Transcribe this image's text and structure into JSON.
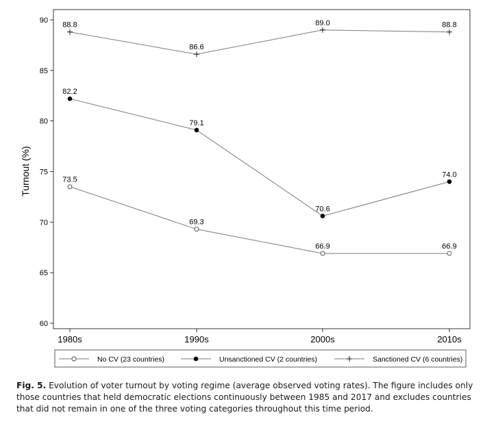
{
  "chart_data": {
    "type": "line",
    "title": "",
    "xlabel": "",
    "ylabel": "Turnout (%)",
    "categories": [
      "1980s",
      "1990s",
      "2000s",
      "2010s"
    ],
    "ylim": [
      60,
      90
    ],
    "yticks": [
      60,
      65,
      70,
      75,
      80,
      85,
      90
    ],
    "grid": false,
    "legend_position": "bottom",
    "series": [
      {
        "name": "No CV (23 countries)",
        "marker": "hollow-circle",
        "values": [
          73.5,
          69.3,
          66.9,
          66.9
        ],
        "labels": [
          "73.5",
          "69.3",
          "66.9",
          "66.9"
        ]
      },
      {
        "name": "Unsanctioned CV (2 countries)",
        "marker": "filled-circle",
        "values": [
          82.2,
          79.1,
          70.6,
          74.0
        ],
        "labels": [
          "82.2",
          "79.1",
          "70.6",
          "74.0"
        ]
      },
      {
        "name": "Sanctioned CV (6 countries)",
        "marker": "plus",
        "values": [
          88.8,
          86.6,
          89.0,
          88.8
        ],
        "labels": [
          "88.8",
          "86.6",
          "89.0",
          "88.8"
        ]
      }
    ],
    "colors": {
      "line": "#7a7a7a",
      "marker": "#000000",
      "axis": "#000000"
    }
  },
  "caption": {
    "label": "Fig. 5.",
    "text": "Evolution of voter turnout by voting regime (average observed voting rates). The figure includes only those countries that held democratic elections continuously between 1985 and 2017 and excludes countries that did not remain in one of the three voting categories throughout this time period."
  }
}
